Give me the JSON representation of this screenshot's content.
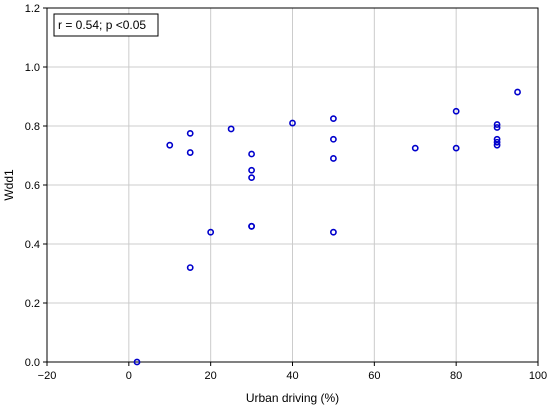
{
  "chart_data": {
    "type": "scatter",
    "title": "",
    "xlabel": "Urban driving (%)",
    "ylabel": "Wdd1",
    "xlim": [
      -20,
      100
    ],
    "ylim": [
      0.0,
      1.2
    ],
    "xticks": [
      -20,
      0,
      20,
      40,
      60,
      80,
      100
    ],
    "yticks": [
      0.0,
      0.2,
      0.4,
      0.6,
      0.8,
      1.0,
      1.2
    ],
    "xtick_labels": [
      "−20",
      "0",
      "20",
      "40",
      "60",
      "80",
      "100"
    ],
    "ytick_labels": [
      "0.0",
      "0.2",
      "0.4",
      "0.6",
      "0.8",
      "1.0",
      "1.2"
    ],
    "grid": true,
    "annotation": "r = 0.54; p <0.05",
    "marker_color": "#0000cc",
    "series": [
      {
        "x": [
          2,
          10,
          15,
          15,
          15,
          20,
          25,
          30,
          30,
          30,
          30,
          30,
          40,
          50,
          50,
          50,
          50,
          70,
          80,
          80,
          90,
          90,
          90,
          90,
          90,
          95
        ],
        "y": [
          0.0,
          0.735,
          0.775,
          0.71,
          0.32,
          0.44,
          0.79,
          0.705,
          0.65,
          0.625,
          0.46,
          0.46,
          0.81,
          0.825,
          0.755,
          0.69,
          0.44,
          0.725,
          0.85,
          0.725,
          0.805,
          0.795,
          0.755,
          0.745,
          0.735,
          0.915
        ]
      }
    ]
  }
}
